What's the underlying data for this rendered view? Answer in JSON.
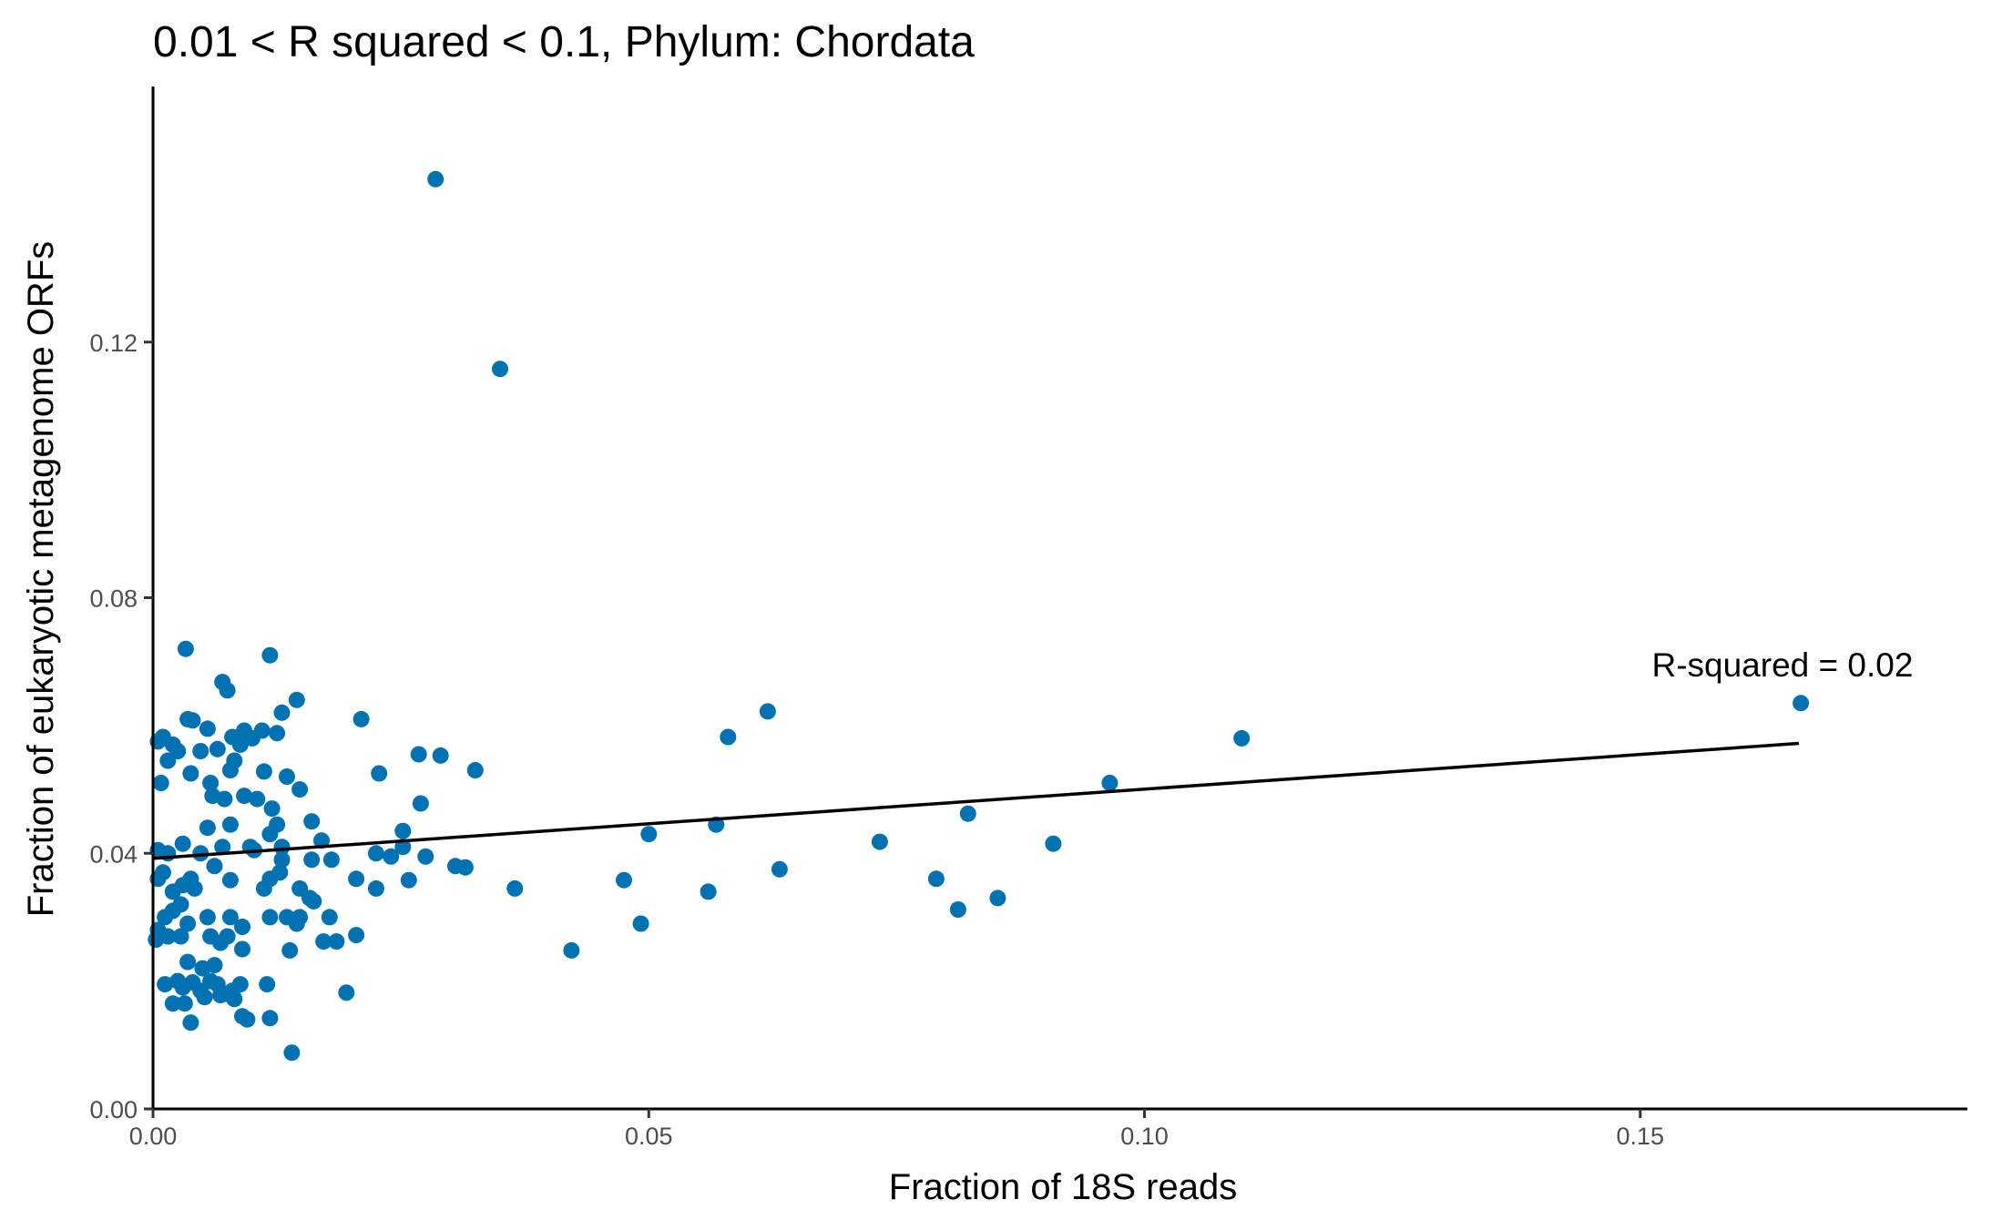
{
  "chart_data": {
    "type": "scatter",
    "title": "0.01 < R squared < 0.1, Phylum:  Chordata",
    "xlabel": "Fraction of 18S reads",
    "ylabel": "Fraction of eukaryotic metagenome ORFs",
    "xlim": [
      0,
      0.183
    ],
    "ylim": [
      0,
      0.16
    ],
    "x_ticks": [
      "0.00",
      "0.05",
      "0.10",
      "0.15"
    ],
    "y_ticks": [
      "0.00",
      "0.04",
      "0.08",
      "0.12"
    ],
    "grid": false,
    "point_color": "#0072B2",
    "line_color": "#000000",
    "fit_line": {
      "x": [
        0.0,
        0.166
      ],
      "y": [
        0.0392,
        0.0572
      ]
    },
    "annotation": "R-squared =  0.02",
    "annotation_anchor": {
      "x": 0.166,
      "y": 0.0695
    },
    "series": [
      {
        "points": [
          [
            0.0285,
            0.1455
          ],
          [
            0.035,
            0.1158
          ],
          [
            0.0118,
            0.071
          ],
          [
            0.0033,
            0.072
          ],
          [
            0.007,
            0.0668
          ],
          [
            0.0075,
            0.0655
          ],
          [
            0.0145,
            0.064
          ],
          [
            0.013,
            0.062
          ],
          [
            0.001,
            0.0582
          ],
          [
            0.0005,
            0.0575
          ],
          [
            0.002,
            0.057
          ],
          [
            0.0035,
            0.061
          ],
          [
            0.004,
            0.0608
          ],
          [
            0.0055,
            0.0595
          ],
          [
            0.008,
            0.0582
          ],
          [
            0.0092,
            0.0592
          ],
          [
            0.011,
            0.0592
          ],
          [
            0.0125,
            0.0588
          ],
          [
            0.021,
            0.061
          ],
          [
            0.0268,
            0.0555
          ],
          [
            0.029,
            0.0553
          ],
          [
            0.0325,
            0.053
          ],
          [
            0.0228,
            0.0525
          ],
          [
            0.0015,
            0.0545
          ],
          [
            0.0025,
            0.056
          ],
          [
            0.0048,
            0.056
          ],
          [
            0.0065,
            0.0563
          ],
          [
            0.0088,
            0.057
          ],
          [
            0.01,
            0.058
          ],
          [
            0.0112,
            0.0528
          ],
          [
            0.0135,
            0.052
          ],
          [
            0.0148,
            0.05
          ],
          [
            0.0078,
            0.053
          ],
          [
            0.0082,
            0.0545
          ],
          [
            0.0008,
            0.051
          ],
          [
            0.0038,
            0.0525
          ],
          [
            0.0058,
            0.051
          ],
          [
            0.006,
            0.049
          ],
          [
            0.0072,
            0.0485
          ],
          [
            0.0092,
            0.049
          ],
          [
            0.0105,
            0.0485
          ],
          [
            0.012,
            0.047
          ],
          [
            0.0125,
            0.0445
          ],
          [
            0.016,
            0.045
          ],
          [
            0.027,
            0.0478
          ],
          [
            0.0252,
            0.0435
          ],
          [
            0.017,
            0.042
          ],
          [
            0.0055,
            0.044
          ],
          [
            0.0078,
            0.0445
          ],
          [
            0.003,
            0.0415
          ],
          [
            0.0015,
            0.04
          ],
          [
            0.0005,
            0.0405
          ],
          [
            0.0048,
            0.04
          ],
          [
            0.007,
            0.041
          ],
          [
            0.0098,
            0.041
          ],
          [
            0.0102,
            0.0405
          ],
          [
            0.0118,
            0.043
          ],
          [
            0.013,
            0.041
          ],
          [
            0.013,
            0.039
          ],
          [
            0.016,
            0.039
          ],
          [
            0.018,
            0.039
          ],
          [
            0.0225,
            0.04
          ],
          [
            0.024,
            0.0395
          ],
          [
            0.0252,
            0.041
          ],
          [
            0.0275,
            0.0395
          ],
          [
            0.0305,
            0.038
          ],
          [
            0.0315,
            0.0378
          ],
          [
            0.0258,
            0.0358
          ],
          [
            0.0205,
            0.036
          ],
          [
            0.0225,
            0.0345
          ],
          [
            0.0148,
            0.0345
          ],
          [
            0.0128,
            0.037
          ],
          [
            0.0118,
            0.036
          ],
          [
            0.0112,
            0.0345
          ],
          [
            0.0078,
            0.0358
          ],
          [
            0.0062,
            0.038
          ],
          [
            0.0038,
            0.036
          ],
          [
            0.003,
            0.035
          ],
          [
            0.002,
            0.034
          ],
          [
            0.001,
            0.037
          ],
          [
            0.0005,
            0.036
          ],
          [
            0.0042,
            0.0345
          ],
          [
            0.0028,
            0.032
          ],
          [
            0.0012,
            0.03
          ],
          [
            0.002,
            0.031
          ],
          [
            0.0035,
            0.029
          ],
          [
            0.0055,
            0.03
          ],
          [
            0.0078,
            0.03
          ],
          [
            0.009,
            0.0285
          ],
          [
            0.0118,
            0.03
          ],
          [
            0.0135,
            0.03
          ],
          [
            0.0145,
            0.029
          ],
          [
            0.0148,
            0.03
          ],
          [
            0.0158,
            0.033
          ],
          [
            0.0162,
            0.0325
          ],
          [
            0.0178,
            0.03
          ],
          [
            0.0005,
            0.028
          ],
          [
            0.0015,
            0.027
          ],
          [
            0.0028,
            0.027
          ],
          [
            0.0058,
            0.027
          ],
          [
            0.0068,
            0.026
          ],
          [
            0.0075,
            0.027
          ],
          [
            0.009,
            0.025
          ],
          [
            0.0138,
            0.0248
          ],
          [
            0.0172,
            0.0262
          ],
          [
            0.0185,
            0.0262
          ],
          [
            0.0205,
            0.0272
          ],
          [
            0.0003,
            0.0265
          ],
          [
            0.0035,
            0.023
          ],
          [
            0.005,
            0.022
          ],
          [
            0.0062,
            0.0225
          ],
          [
            0.0058,
            0.02
          ],
          [
            0.004,
            0.0198
          ],
          [
            0.0025,
            0.02
          ],
          [
            0.0012,
            0.0195
          ],
          [
            0.003,
            0.019
          ],
          [
            0.0048,
            0.0185
          ],
          [
            0.0065,
            0.0195
          ],
          [
            0.0072,
            0.018
          ],
          [
            0.008,
            0.0185
          ],
          [
            0.0088,
            0.0195
          ],
          [
            0.0115,
            0.0195
          ],
          [
            0.0195,
            0.0182
          ],
          [
            0.002,
            0.0165
          ],
          [
            0.0032,
            0.0165
          ],
          [
            0.0052,
            0.0175
          ],
          [
            0.0068,
            0.0178
          ],
          [
            0.0082,
            0.0172
          ],
          [
            0.009,
            0.0145
          ],
          [
            0.0095,
            0.014
          ],
          [
            0.0118,
            0.0142
          ],
          [
            0.0038,
            0.0135
          ],
          [
            0.014,
            0.0088
          ],
          [
            0.0365,
            0.0345
          ],
          [
            0.0422,
            0.0248
          ],
          [
            0.0475,
            0.0358
          ],
          [
            0.0492,
            0.029
          ],
          [
            0.05,
            0.043
          ],
          [
            0.056,
            0.034
          ],
          [
            0.0568,
            0.0445
          ],
          [
            0.058,
            0.0582
          ],
          [
            0.062,
            0.0622
          ],
          [
            0.0632,
            0.0375
          ],
          [
            0.0733,
            0.0418
          ],
          [
            0.079,
            0.036
          ],
          [
            0.0812,
            0.0312
          ],
          [
            0.0822,
            0.0462
          ],
          [
            0.0852,
            0.033
          ],
          [
            0.0908,
            0.0415
          ],
          [
            0.0965,
            0.051
          ],
          [
            0.1098,
            0.058
          ],
          [
            0.1662,
            0.0635
          ]
        ]
      }
    ]
  }
}
